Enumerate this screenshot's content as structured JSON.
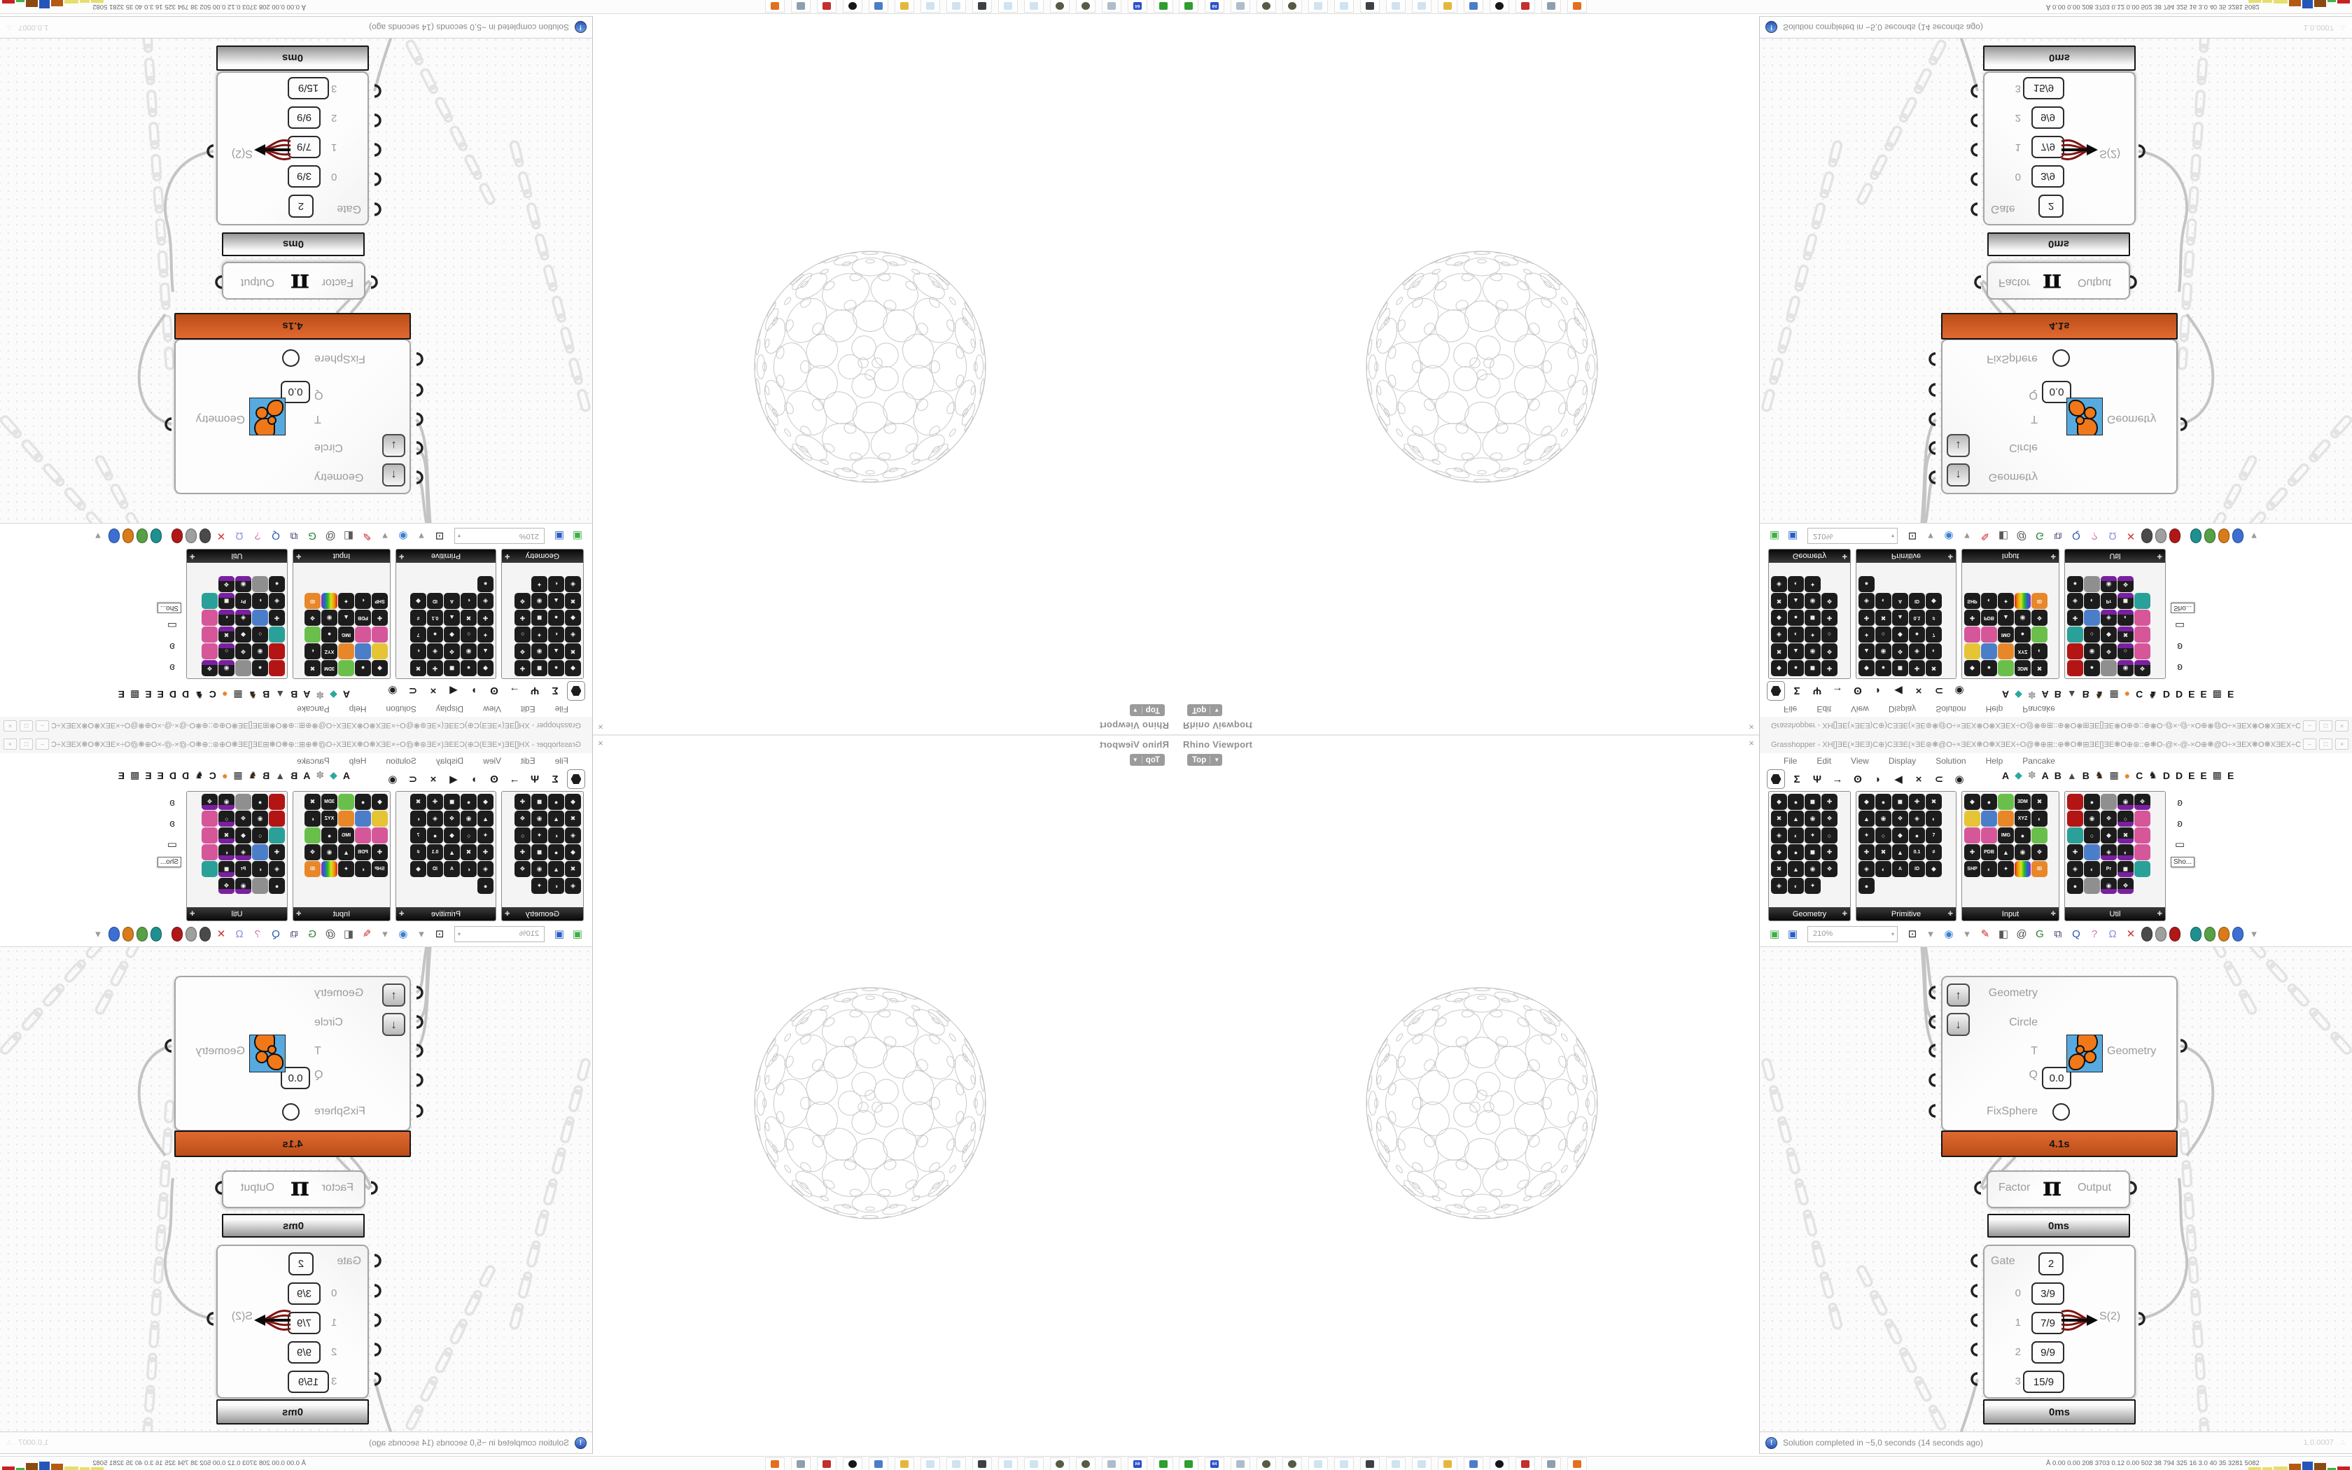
{
  "window": {
    "title": "Grasshopper - XH[]ƎE(×ƎEƎ)C⊕)CƎƎE(×ƎE⊛❋@O÷×ƎEX❋O❋XƎEX÷O@❋⊕⊞::⊕❋O❋⊞ƎE[]ƎE❋O⊕⊛::⊕❋O-@×-@-×O⊕❋@O÷×ƎEX❋O❋XƎEX÷O@❋...",
    "menu": [
      "File",
      "Edit",
      "View",
      "Display",
      "Solution",
      "Help",
      "Pancake"
    ],
    "zoom": "210%",
    "status": "Solution completed in ~5,0 seconds (14 seconds ago)",
    "version": "1.0.0007",
    "buttons": [
      "–",
      "□",
      "×"
    ]
  },
  "rhino": {
    "panel_title": "Rhino Viewport",
    "view": "Top",
    "close": "×"
  },
  "palette": {
    "tabs_left": [
      "hex",
      "Σ",
      "Ψ",
      "→",
      "ʘ",
      "◗",
      "◀",
      "×",
      "⊂",
      "◉"
    ],
    "tabs_right": [
      {
        "t": "A",
        "c": "#161616"
      },
      {
        "t": "◆",
        "c": "#2aa8a0"
      },
      {
        "t": "✽",
        "c": "#9a9a9a"
      },
      {
        "t": "A",
        "c": "#161616"
      },
      {
        "t": "B",
        "c": "#161616"
      },
      {
        "t": "▲",
        "c": "#4a4a4a"
      },
      {
        "t": "B",
        "c": "#161616"
      },
      {
        "t": "♞",
        "c": "#33261a"
      },
      {
        "t": "▦",
        "c": "#2a2a2a"
      },
      {
        "t": "●",
        "c": "#e8872a"
      },
      {
        "t": "C",
        "c": "#161616"
      },
      {
        "t": "♞",
        "c": "#1f1a14"
      },
      {
        "t": "D",
        "c": "#161616"
      },
      {
        "t": "D",
        "c": "#161616"
      },
      {
        "t": "E",
        "c": "#161616"
      },
      {
        "t": "E",
        "c": "#161616"
      },
      {
        "t": "▩",
        "c": "#2a2a2a"
      },
      {
        "t": "E",
        "c": "#161616"
      }
    ],
    "groups": [
      {
        "name": "Geometry",
        "width": 116,
        "cells": [
          "k",
          "k",
          "k",
          "k",
          "k",
          "k",
          "k",
          "k",
          "k",
          "k",
          "k",
          "k",
          "k",
          "k",
          "k",
          "k",
          "k",
          "k",
          "k",
          "k",
          "k",
          "k",
          "k"
        ]
      },
      {
        "name": "Primitive",
        "width": 142,
        "cells": [
          "k",
          "k",
          "k",
          "k",
          "k",
          "k",
          "k",
          "k",
          "k",
          "k",
          "k",
          "k",
          "k",
          "k",
          "t:7",
          "k",
          "k",
          "k",
          "t:0.1",
          "t:#",
          "k",
          "k",
          "t:A",
          "t:ID",
          "k",
          "k"
        ]
      },
      {
        "name": "Input",
        "width": 138,
        "cells": [
          "k",
          "k",
          "g",
          "t:3DM",
          "k",
          "y",
          "b",
          "o",
          "t:XYZ",
          "k",
          "pk",
          "pk",
          "t:IMG",
          "k",
          "g",
          "k",
          "t:PDB",
          "k",
          "k",
          "k",
          "t:SHP",
          "k",
          "k",
          "rb",
          "or:ID"
        ]
      },
      {
        "name": "Util",
        "width": 143,
        "cells": [
          "r",
          "k",
          "a",
          "p",
          "p",
          "r",
          "k",
          "k",
          "p",
          "pk",
          "m",
          "k",
          "k",
          "p",
          "pk",
          "k",
          "b",
          "p",
          "p",
          "pk",
          "k",
          "k",
          "t:Pr",
          "p",
          "m",
          "k",
          "a",
          "p",
          "p"
        ]
      }
    ],
    "more_icons": [
      "ʚ",
      "ʚ",
      "▭"
    ],
    "more_label": "Sho..."
  },
  "toolbar": {
    "items": [
      {
        "k": "open-folder-icon",
        "g": "▣",
        "c": "#3fae49"
      },
      {
        "k": "save-icon",
        "g": "▣",
        "c": "#2b5fc7"
      },
      {
        "k": "zoombox"
      },
      {
        "k": "focus-extents-icon",
        "g": "⊡",
        "c": "#1a1a1a"
      },
      {
        "k": "dd",
        "g": "▾",
        "c": "#9a9a9a"
      },
      {
        "k": "preview-eye-icon",
        "g": "◉",
        "c": "#3a7fd5"
      },
      {
        "k": "dd",
        "g": "▾",
        "c": "#9a9a9a"
      },
      {
        "k": "sketch-pen-icon",
        "g": "✎",
        "c": "#cc2222"
      },
      {
        "k": "eraser-icon",
        "g": "◧",
        "c": "#5a5a5a"
      },
      {
        "k": "publish-icon",
        "g": "@",
        "c": "#4a4a4a"
      },
      {
        "k": "gha-icon",
        "g": "G",
        "c": "#2a7a3a"
      },
      {
        "k": "window-icon",
        "g": "⧉",
        "c": "#3a3a6a"
      },
      {
        "k": "find-icon",
        "g": "Q",
        "c": "#2a5ab0"
      },
      {
        "k": "help-box-icon",
        "g": "?",
        "c": "#e06ab0"
      },
      {
        "k": "hint-bulb-icon",
        "g": "Ω",
        "c": "#8f8fd8"
      },
      {
        "k": "wire-display-icon",
        "g": "✕",
        "c": "#cc3333"
      },
      {
        "k": "drop",
        "c": "#4a4a4a"
      },
      {
        "k": "drop",
        "c": "#9f9f9f"
      },
      {
        "k": "drop",
        "c": "#b01818"
      },
      {
        "k": "sep"
      },
      {
        "k": "drop",
        "c": "#1f8f8f"
      },
      {
        "k": "drop",
        "c": "#56a046"
      },
      {
        "k": "drop",
        "c": "#d97b18"
      },
      {
        "k": "drop",
        "c": "#3b6fd4"
      },
      {
        "k": "dd",
        "g": "▾",
        "c": "#9a9a9a"
      }
    ]
  },
  "nodes": {
    "fixsphere": {
      "inputs": [
        "Geometry",
        "Circle",
        "T",
        "Q",
        "FixSphere"
      ],
      "q_value": "0.0",
      "output": "Geometry",
      "time": "4.1s"
    },
    "pi": {
      "input": "Factor",
      "symbol": "π",
      "output": "Output",
      "time": "0ms"
    },
    "gate": {
      "label": "Gate",
      "gate_value": "2",
      "rows": [
        {
          "index": "0",
          "value": "3/9"
        },
        {
          "index": "1",
          "value": "7/9"
        },
        {
          "index": "2",
          "value": "9/9"
        },
        {
          "index": "3",
          "value": "15/9"
        }
      ],
      "output": "S(2)",
      "time": "0ms"
    }
  },
  "taskbar": {
    "icons": [
      "console",
      "floppy-64",
      "printer",
      "sphere",
      "sphere",
      "notepad",
      "notepad",
      "monitor",
      "notepad",
      "notepad",
      "folder",
      "monitor-blue",
      "wolf",
      "shield",
      "calculator",
      "firefox"
    ],
    "icon_colors": [
      "#2f9e2f",
      "#2b50c8",
      "#aebdcb",
      "#565b43",
      "#565b43",
      "#cfe3f0",
      "#cfe3f0",
      "#3c4148",
      "#cfe3f0",
      "#cfe3f0",
      "#e3b83a",
      "#4a7ec9",
      "#17171a",
      "#c22f2f",
      "#8f9fae",
      "#e2701d"
    ],
    "stats_icon": "Å",
    "stats": "0.00 0.00  208 3703 0.12 0.00  502   38   794  325   16   3.0   40   35  3281 5082",
    "bars": [
      {
        "c": "#e6de6e",
        "w": 18,
        "h": 4
      },
      {
        "c": "#e6de6e",
        "w": 14,
        "h": 4
      },
      {
        "c": "#e6de6e",
        "w": 20,
        "h": 5
      },
      {
        "c": "#b35b12",
        "w": 17,
        "h": 9
      },
      {
        "c": "#2356b8",
        "w": 15,
        "h": 12
      },
      {
        "c": "#8a4a10",
        "w": 17,
        "h": 10
      },
      {
        "c": "#3fb33f",
        "w": 12,
        "h": 3
      },
      {
        "c": "#c52222",
        "w": 18,
        "h": 5
      }
    ]
  }
}
